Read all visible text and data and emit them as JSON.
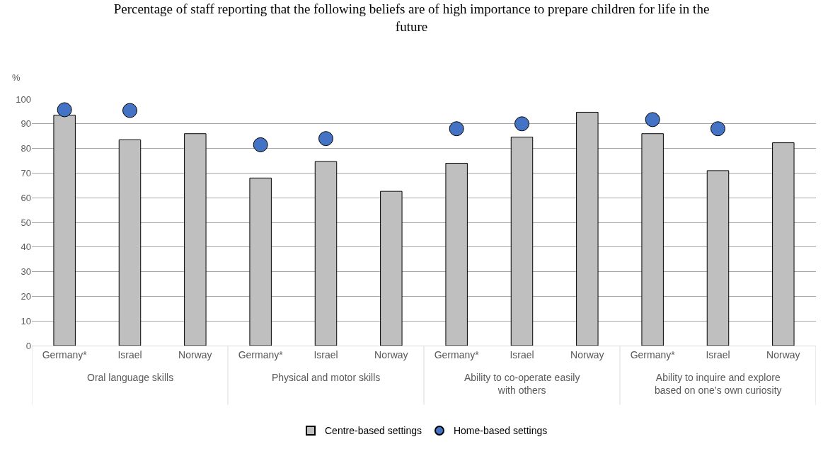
{
  "chart_data": {
    "type": "bar",
    "title": "Percentage of staff reporting that the following beliefs are of high importance to prepare children for life in the future",
    "ylabel": "%",
    "categories": [
      "Germany*",
      "Israel",
      "Norway",
      "Germany*",
      "Israel",
      "Norway",
      "Germany*",
      "Israel",
      "Norway",
      "Germany*",
      "Israel",
      "Norway"
    ],
    "annotations": [
      "Oral language skills",
      "Physical and motor skills",
      "Ability to co-operate easily with others",
      "Ability to inquire and explore based on one’s own curiosity"
    ],
    "series": [
      {
        "name": "Centre-based settings",
        "color": "#bfbfbf",
        "values": [
          93.5,
          83.5,
          86,
          68,
          74.7,
          62.6,
          74,
          84.6,
          94.7,
          86,
          71,
          82.3
        ]
      },
      {
        "name": "Home-based settings",
        "type": "scatter",
        "marker": "circle",
        "color": "#4472c4",
        "values": [
          95.7,
          95.4,
          null,
          81.5,
          84,
          null,
          88,
          90,
          null,
          91.7,
          88,
          null
        ]
      }
    ],
    "ylim": [
      0,
      100
    ],
    "yticks": [
      0,
      10,
      20,
      30,
      40,
      50,
      60,
      70,
      80,
      90,
      100
    ],
    "grid": "y",
    "legend": "bottom"
  }
}
